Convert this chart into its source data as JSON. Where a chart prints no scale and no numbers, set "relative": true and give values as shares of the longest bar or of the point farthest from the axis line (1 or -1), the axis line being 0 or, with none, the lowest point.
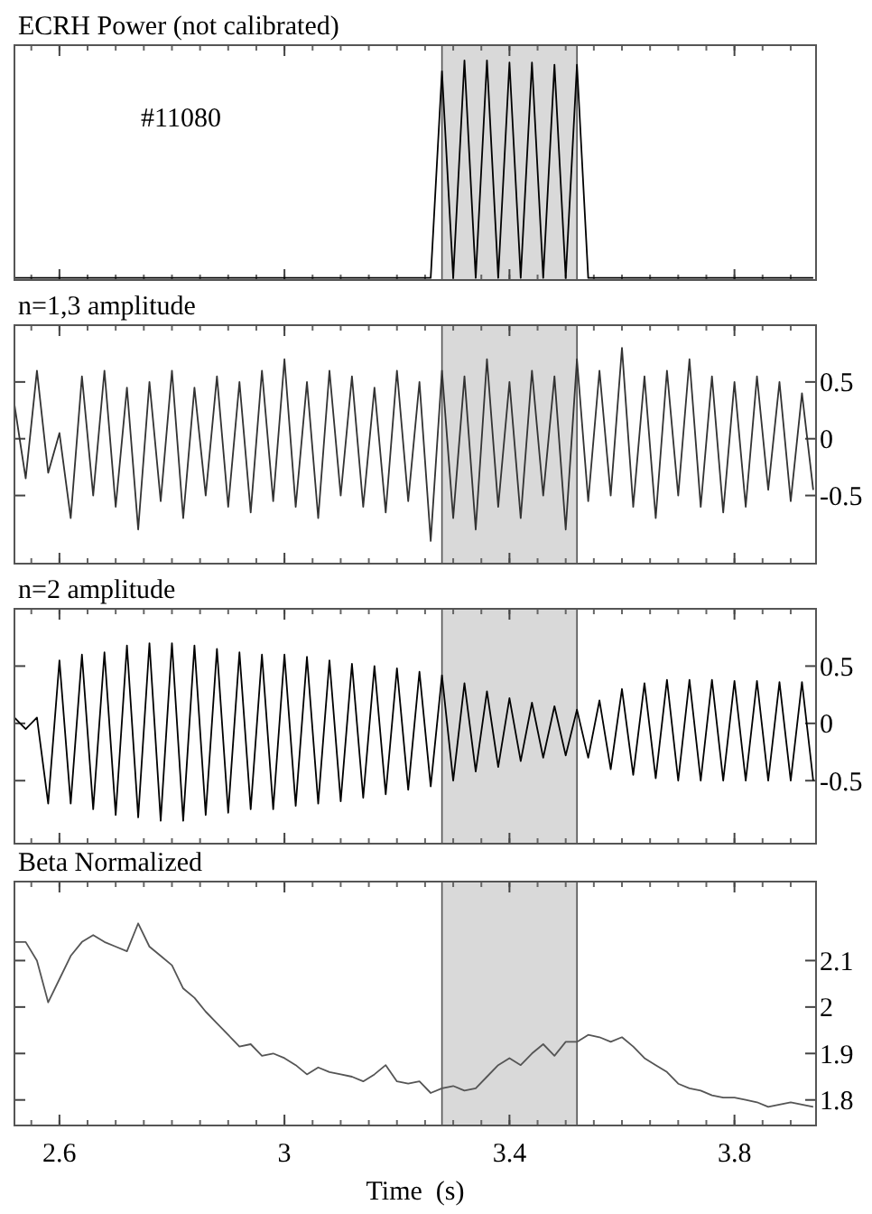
{
  "chart_data": [
    {
      "type": "line",
      "title": "ECRH Power (not calibrated)",
      "annotations": [
        "#11080"
      ],
      "relative": true,
      "tick_labels": false,
      "xlim": [
        2.52,
        3.945
      ],
      "xticks": [
        {
          "value": 2.6,
          "label": null
        },
        {
          "value": 3,
          "label": null
        },
        {
          "value": 3.4,
          "label": null
        },
        {
          "value": 3.8,
          "label": null
        }
      ],
      "x": [
        2.52,
        2.54,
        2.56,
        2.58,
        2.6,
        2.62,
        2.64,
        2.66,
        2.68,
        2.7,
        2.72,
        2.74,
        2.76,
        2.78,
        2.8,
        2.82,
        2.84,
        2.86,
        2.88,
        2.9,
        2.92,
        2.94,
        2.96,
        2.98,
        3.0,
        3.02,
        3.04,
        3.06,
        3.08,
        3.1,
        3.12,
        3.14,
        3.16,
        3.18,
        3.2,
        3.22,
        3.24,
        3.26,
        3.28,
        3.3,
        3.32,
        3.34,
        3.36,
        3.38,
        3.4,
        3.42,
        3.44,
        3.46,
        3.48,
        3.5,
        3.52,
        3.54,
        3.56,
        3.58,
        3.6,
        3.62,
        3.64,
        3.66,
        3.68,
        3.7,
        3.72,
        3.74,
        3.76,
        3.78,
        3.8,
        3.82,
        3.84,
        3.86,
        3.88,
        3.9,
        3.92,
        3.94
      ],
      "series": [
        {
          "color": "#000000",
          "values": [
            0,
            0,
            0,
            0,
            0,
            0,
            0,
            0,
            0,
            0,
            0,
            0,
            0,
            0,
            0,
            0,
            0,
            0,
            0,
            0,
            0,
            0,
            0,
            0,
            0,
            0,
            0,
            0,
            0,
            0,
            0,
            0,
            0,
            0,
            0,
            0,
            0,
            0,
            0.95,
            0,
            1,
            0,
            1,
            0,
            0.99,
            0,
            0.99,
            0,
            0.98,
            0,
            0.98,
            0,
            0,
            0,
            0,
            0,
            0,
            0,
            0,
            0,
            0,
            0,
            0,
            0,
            0,
            0,
            0,
            0,
            0,
            0,
            0,
            0
          ]
        }
      ],
      "bands": [
        {
          "axis": "x",
          "from": 3.28,
          "to": 3.52,
          "color": "#d9d9d9"
        }
      ]
    },
    {
      "type": "line",
      "title": "n=1,3 amplitude",
      "tick_labels": "y",
      "xlim": [
        2.52,
        3.945
      ],
      "ylim": [
        -1.1,
        1.0
      ],
      "xticks": [
        {
          "value": 2.6,
          "label": null
        },
        {
          "value": 3,
          "label": null
        },
        {
          "value": 3.4,
          "label": null
        },
        {
          "value": 3.8,
          "label": null
        }
      ],
      "yticks": [
        0.5,
        0,
        -0.5
      ],
      "x": [
        2.52,
        2.54,
        2.56,
        2.58,
        2.6,
        2.62,
        2.64,
        2.66,
        2.68,
        2.7,
        2.72,
        2.74,
        2.76,
        2.78,
        2.8,
        2.82,
        2.84,
        2.86,
        2.88,
        2.9,
        2.92,
        2.94,
        2.96,
        2.98,
        3.0,
        3.02,
        3.04,
        3.06,
        3.08,
        3.1,
        3.12,
        3.14,
        3.16,
        3.18,
        3.2,
        3.22,
        3.24,
        3.26,
        3.28,
        3.3,
        3.32,
        3.34,
        3.36,
        3.38,
        3.4,
        3.42,
        3.44,
        3.46,
        3.48,
        3.5,
        3.52,
        3.54,
        3.56,
        3.58,
        3.6,
        3.62,
        3.64,
        3.66,
        3.68,
        3.7,
        3.72,
        3.74,
        3.76,
        3.78,
        3.8,
        3.82,
        3.84,
        3.86,
        3.88,
        3.9,
        3.92,
        3.94
      ],
      "series": [
        {
          "color": "#333333",
          "values": [
            0.3,
            -0.35,
            0.6,
            -0.3,
            0.05,
            -0.7,
            0.55,
            -0.5,
            0.6,
            -0.6,
            0.45,
            -0.8,
            0.5,
            -0.55,
            0.6,
            -0.7,
            0.45,
            -0.5,
            0.55,
            -0.6,
            0.5,
            -0.65,
            0.6,
            -0.55,
            0.7,
            -0.6,
            0.5,
            -0.7,
            0.6,
            -0.5,
            0.55,
            -0.6,
            0.45,
            -0.65,
            0.6,
            -0.55,
            0.5,
            -0.9,
            0.6,
            -0.7,
            0.55,
            -0.8,
            0.7,
            -0.6,
            0.5,
            -0.7,
            0.6,
            -0.5,
            0.55,
            -0.8,
            0.7,
            -0.55,
            0.6,
            -0.5,
            0.8,
            -0.6,
            0.55,
            -0.7,
            0.6,
            -0.5,
            0.7,
            -0.6,
            0.55,
            -0.65,
            0.5,
            -0.6,
            0.55,
            -0.45,
            0.5,
            -0.55,
            0.4,
            -0.45
          ]
        }
      ],
      "bands": [
        {
          "axis": "x",
          "from": 3.28,
          "to": 3.52,
          "color": "#d9d9d9"
        }
      ]
    },
    {
      "type": "line",
      "title": "n=2 amplitude",
      "tick_labels": "y",
      "xlim": [
        2.52,
        3.945
      ],
      "ylim": [
        -1.05,
        1.0
      ],
      "xticks": [
        {
          "value": 2.6,
          "label": null
        },
        {
          "value": 3,
          "label": null
        },
        {
          "value": 3.4,
          "label": null
        },
        {
          "value": 3.8,
          "label": null
        }
      ],
      "yticks": [
        0.5,
        0,
        -0.5
      ],
      "x": [
        2.52,
        2.54,
        2.56,
        2.58,
        2.6,
        2.62,
        2.64,
        2.66,
        2.68,
        2.7,
        2.72,
        2.74,
        2.76,
        2.78,
        2.8,
        2.82,
        2.84,
        2.86,
        2.88,
        2.9,
        2.92,
        2.94,
        2.96,
        2.98,
        3.0,
        3.02,
        3.04,
        3.06,
        3.08,
        3.1,
        3.12,
        3.14,
        3.16,
        3.18,
        3.2,
        3.22,
        3.24,
        3.26,
        3.28,
        3.3,
        3.32,
        3.34,
        3.36,
        3.38,
        3.4,
        3.42,
        3.44,
        3.46,
        3.48,
        3.5,
        3.52,
        3.54,
        3.56,
        3.58,
        3.6,
        3.62,
        3.64,
        3.66,
        3.68,
        3.7,
        3.72,
        3.74,
        3.76,
        3.78,
        3.8,
        3.82,
        3.84,
        3.86,
        3.88,
        3.9,
        3.92,
        3.94
      ],
      "series": [
        {
          "color": "#000000",
          "values": [
            0.05,
            -0.05,
            0.05,
            -0.7,
            0.55,
            -0.7,
            0.6,
            -0.75,
            0.62,
            -0.8,
            0.68,
            -0.82,
            0.7,
            -0.85,
            0.7,
            -0.85,
            0.68,
            -0.8,
            0.65,
            -0.78,
            0.62,
            -0.75,
            0.6,
            -0.75,
            0.6,
            -0.72,
            0.58,
            -0.7,
            0.55,
            -0.68,
            0.52,
            -0.65,
            0.5,
            -0.62,
            0.48,
            -0.58,
            0.45,
            -0.55,
            0.42,
            -0.5,
            0.35,
            -0.42,
            0.28,
            -0.38,
            0.22,
            -0.33,
            0.18,
            -0.3,
            0.15,
            -0.28,
            0.12,
            -0.3,
            0.2,
            -0.4,
            0.3,
            -0.45,
            0.35,
            -0.48,
            0.38,
            -0.5,
            0.38,
            -0.5,
            0.38,
            -0.5,
            0.37,
            -0.5,
            0.37,
            -0.5,
            0.36,
            -0.5,
            0.36,
            -0.5
          ]
        }
      ],
      "bands": [
        {
          "axis": "x",
          "from": 3.28,
          "to": 3.52,
          "color": "#d9d9d9"
        }
      ]
    },
    {
      "type": "line",
      "title": "Beta Normalized",
      "xlabel": "Time  (s)",
      "xlim": [
        2.52,
        3.945
      ],
      "ylim": [
        1.745,
        2.27
      ],
      "xticks": [
        2.6,
        3,
        3.4,
        3.8
      ],
      "yticks": [
        2.1,
        2,
        1.9,
        1.8
      ],
      "x": [
        2.52,
        2.54,
        2.56,
        2.58,
        2.6,
        2.62,
        2.64,
        2.66,
        2.68,
        2.7,
        2.72,
        2.74,
        2.76,
        2.78,
        2.8,
        2.82,
        2.84,
        2.86,
        2.88,
        2.9,
        2.92,
        2.94,
        2.96,
        2.98,
        3.0,
        3.02,
        3.04,
        3.06,
        3.08,
        3.1,
        3.12,
        3.14,
        3.16,
        3.18,
        3.2,
        3.22,
        3.24,
        3.26,
        3.28,
        3.3,
        3.32,
        3.34,
        3.36,
        3.38,
        3.4,
        3.42,
        3.44,
        3.46,
        3.48,
        3.5,
        3.52,
        3.54,
        3.56,
        3.58,
        3.6,
        3.62,
        3.64,
        3.66,
        3.68,
        3.7,
        3.72,
        3.74,
        3.76,
        3.78,
        3.8,
        3.82,
        3.84,
        3.86,
        3.88,
        3.9,
        3.92,
        3.94
      ],
      "series": [
        {
          "color": "#555555",
          "values": [
            2.14,
            2.14,
            2.1,
            2.01,
            2.06,
            2.11,
            2.14,
            2.155,
            2.14,
            2.13,
            2.12,
            2.18,
            2.13,
            2.11,
            2.09,
            2.04,
            2.02,
            1.99,
            1.965,
            1.94,
            1.915,
            1.92,
            1.895,
            1.9,
            1.89,
            1.875,
            1.855,
            1.87,
            1.86,
            1.855,
            1.85,
            1.84,
            1.855,
            1.875,
            1.84,
            1.835,
            1.84,
            1.815,
            1.825,
            1.83,
            1.82,
            1.825,
            1.85,
            1.875,
            1.89,
            1.875,
            1.9,
            1.92,
            1.895,
            1.925,
            1.925,
            1.94,
            1.935,
            1.925,
            1.935,
            1.915,
            1.89,
            1.875,
            1.86,
            1.835,
            1.825,
            1.82,
            1.81,
            1.805,
            1.805,
            1.8,
            1.795,
            1.785,
            1.79,
            1.795,
            1.79,
            1.785
          ]
        }
      ],
      "bands": [
        {
          "axis": "x",
          "from": 3.28,
          "to": 3.52,
          "color": "#d9d9d9"
        }
      ]
    }
  ]
}
